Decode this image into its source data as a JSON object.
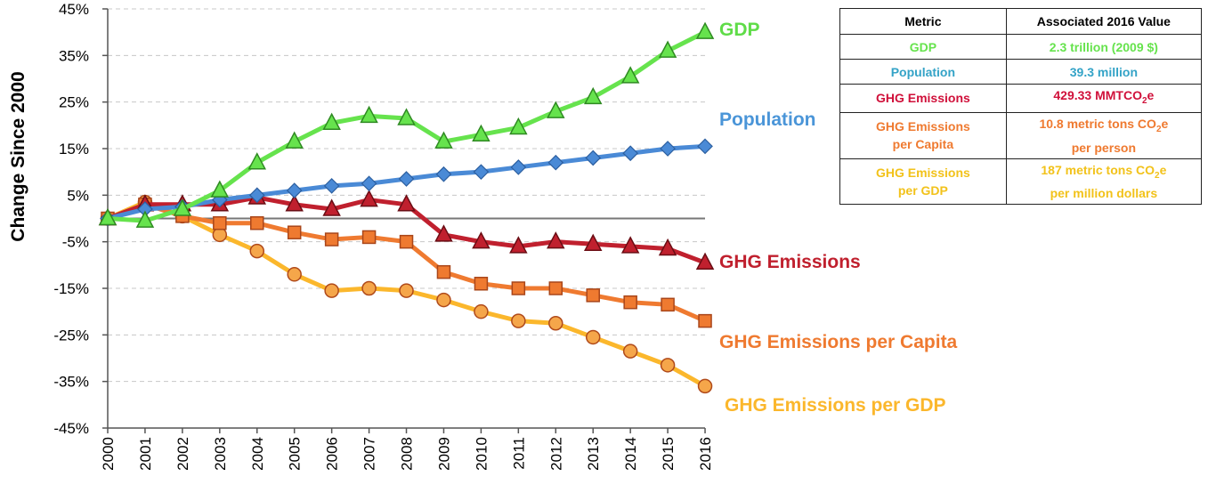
{
  "chart_data": {
    "type": "line",
    "ylabel": "Change Since 2000",
    "xlabel": "",
    "ylim": [
      -45,
      45
    ],
    "yticks": [
      -45,
      -35,
      -25,
      -15,
      -5,
      5,
      15,
      25,
      35,
      45
    ],
    "ytick_labels": [
      "-45%",
      "-35%",
      "-25%",
      "-15%",
      "-5%",
      "5%",
      "15%",
      "25%",
      "35%",
      "45%"
    ],
    "x": [
      "2000",
      "2001",
      "2002",
      "2003",
      "2004",
      "2005",
      "2006",
      "2007",
      "2008",
      "2009",
      "2010",
      "2011",
      "2012",
      "2013",
      "2014",
      "2015",
      "2016"
    ],
    "grid": true,
    "series": [
      {
        "name": "GDP",
        "label": "GDP",
        "color": "#66e34d",
        "marker": "triangle",
        "values": [
          0,
          -0.5,
          2,
          6,
          12,
          16.5,
          20.5,
          22,
          21.5,
          16.5,
          18,
          19.5,
          23,
          26,
          30.5,
          36,
          40
        ]
      },
      {
        "name": "Population",
        "label": "Population",
        "color": "#4a8ad6",
        "marker": "diamond",
        "values": [
          0,
          2,
          2.5,
          4,
          5,
          6,
          7,
          7.5,
          8.5,
          9.5,
          10,
          11,
          12,
          13,
          14,
          15,
          15.5
        ]
      },
      {
        "name": "GHG Emissions",
        "label": "GHG Emissions",
        "color": "#c0202e",
        "marker": "triangle",
        "values": [
          0,
          3,
          3,
          3,
          4.5,
          3,
          2,
          4,
          3,
          -3.5,
          -5,
          -6,
          -5,
          -5.5,
          -6,
          -6.5,
          -9.5
        ]
      },
      {
        "name": "GHG Emissions per Capita",
        "label": "GHG Emissions per Capita",
        "color": "#ef7a30",
        "marker": "square",
        "values": [
          0,
          3,
          0.5,
          -1,
          -1,
          -3,
          -4.5,
          -4,
          -5,
          -11.5,
          -14,
          -15,
          -15,
          -16.5,
          -18,
          -18.5,
          -22
        ]
      },
      {
        "name": "GHG Emissions per GDP",
        "label": "GHG Emissions per GDP",
        "color": "#fbb72c",
        "marker": "circle",
        "values": [
          0,
          3.5,
          0.5,
          -3.5,
          -7,
          -12,
          -15.5,
          -15,
          -15.5,
          -17.5,
          -20,
          -22,
          -22.5,
          -25.5,
          -28.5,
          -31.5,
          -36
        ]
      }
    ]
  },
  "table": {
    "header": {
      "metric": "Metric",
      "value": "Associated 2016 Value"
    },
    "rows": [
      {
        "metric_l1": "GDP",
        "metric_l2": "",
        "value_l1": "2.3 trillion (2009 $)",
        "value_l2": "",
        "color": "#66e34d"
      },
      {
        "metric_l1": "Population",
        "metric_l2": "",
        "value_l1": "39.3 million",
        "value_l2": "",
        "color": "#34a3c7"
      },
      {
        "metric_l1": "GHG Emissions",
        "metric_l2": "",
        "value_l1": "429.33 MMTCO",
        "value_sub": "2",
        "value_l1_tail": "e",
        "value_l2": "",
        "color": "#d0103a"
      },
      {
        "metric_l1": "GHG Emissions",
        "metric_l2": "per Capita",
        "value_l1": "10.8 metric tons CO",
        "value_sub": "2",
        "value_l1_tail": "e",
        "value_l2": "per person",
        "color": "#ef7a30"
      },
      {
        "metric_l1": "GHG Emissions",
        "metric_l2": "per GDP",
        "value_l1": "187 metric tons CO",
        "value_sub": "2",
        "value_l1_tail": "e",
        "value_l2": "per million dollars",
        "color": "#f2c21a"
      }
    ]
  }
}
